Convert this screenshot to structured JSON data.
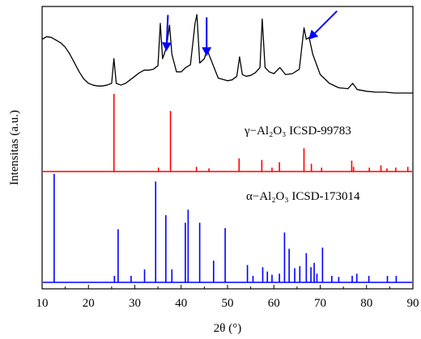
{
  "chart_data": {
    "type": "line",
    "xlabel": "2θ (°)",
    "ylabel": "Intensitas (a.u.)",
    "xlim": [
      10,
      90
    ],
    "x_ticks": [
      10,
      20,
      30,
      40,
      50,
      60,
      70,
      80,
      90
    ],
    "y_ticks_shown": false,
    "grid": false,
    "annotations": [
      {
        "text": "γ−Al₂O₃ ICSD-99783",
        "near_series": "γ−Al₂O₃ ICSD-99783"
      },
      {
        "text": "α−Al₂O₃ ICSD-173014",
        "near_series": "α−Al₂O₃ ICSD-173014"
      }
    ],
    "arrows": [
      {
        "points_to_2theta": 36.8
      },
      {
        "points_to_2theta": 45.5
      },
      {
        "points_to_2theta": 67.5
      }
    ],
    "series": [
      {
        "name": "",
        "style": "line",
        "color": "#000000",
        "baseline": 0,
        "peak_height_max": 1,
        "x": [
          10,
          11,
          12,
          13,
          14,
          15,
          16,
          17,
          18,
          19,
          20,
          21,
          22,
          23,
          24,
          25,
          25.5,
          26,
          27,
          28,
          29,
          30,
          31,
          32,
          33,
          34,
          35,
          35.5,
          36,
          36.8,
          37.5,
          38,
          39,
          40,
          41,
          42,
          43,
          43.4,
          44,
          45,
          45.6,
          46.5,
          48,
          50,
          51,
          52,
          52.6,
          53.2,
          54,
          55,
          56,
          57,
          57.5,
          58.1,
          59,
          60,
          61.3,
          62.5,
          64,
          65.5,
          66.5,
          67,
          67.6,
          68.4,
          70,
          72,
          74,
          76,
          77,
          78,
          80,
          82,
          84,
          86,
          88,
          90
        ],
        "y": [
          0.72,
          0.75,
          0.74,
          0.71,
          0.68,
          0.63,
          0.55,
          0.45,
          0.35,
          0.27,
          0.22,
          0.2,
          0.19,
          0.19,
          0.2,
          0.22,
          0.5,
          0.22,
          0.2,
          0.22,
          0.26,
          0.3,
          0.34,
          0.37,
          0.37,
          0.38,
          0.42,
          0.9,
          0.5,
          0.62,
          0.88,
          0.55,
          0.35,
          0.35,
          0.4,
          0.43,
          0.9,
          1.0,
          0.45,
          0.5,
          0.6,
          0.48,
          0.28,
          0.25,
          0.26,
          0.3,
          0.52,
          0.32,
          0.3,
          0.31,
          0.34,
          0.4,
          0.95,
          0.4,
          0.35,
          0.33,
          0.4,
          0.32,
          0.33,
          0.38,
          0.85,
          0.72,
          0.74,
          0.55,
          0.32,
          0.22,
          0.17,
          0.16,
          0.22,
          0.15,
          0.13,
          0.12,
          0.12,
          0.11,
          0.11,
          0.11
        ]
      },
      {
        "name": "γ−Al₂O₃ ICSD-99783",
        "style": "stick",
        "color": "#ff0000",
        "baseline": 0,
        "peak_height_max": 1,
        "x": [
          25.5,
          35.1,
          37.7,
          43.3,
          46,
          52.5,
          57.4,
          59.6,
          61.2,
          66.5,
          68.1,
          70.3,
          76.8,
          77.2,
          80.6,
          83.1,
          84.4,
          86.3,
          88.9
        ],
        "y": [
          1.0,
          0.05,
          0.78,
          0.06,
          0.04,
          0.17,
          0.15,
          0.05,
          0.12,
          0.3,
          0.1,
          0.05,
          0.14,
          0.06,
          0.05,
          0.08,
          0.04,
          0.05,
          0.06
        ]
      },
      {
        "name": "α−Al₂O₃ ICSD-173014",
        "style": "stick",
        "color": "#0000ff",
        "baseline": 0,
        "peak_height_max": 1,
        "x": [
          12.6,
          25.6,
          26.4,
          29.2,
          32.1,
          34.5,
          36.7,
          38,
          40.9,
          41.5,
          44,
          47,
          49.5,
          54.3,
          55.5,
          57.6,
          58.6,
          59.6,
          61.2,
          62.3,
          63.3,
          64.5,
          65.6,
          67,
          68,
          68.7,
          69.3,
          70.5,
          72.5,
          74,
          76.9,
          77.9,
          80.5,
          84.5,
          86.4
        ],
        "y": [
          1.0,
          0.06,
          0.49,
          0.06,
          0.12,
          0.93,
          0.62,
          0.12,
          0.55,
          0.67,
          0.55,
          0.2,
          0.5,
          0.16,
          0.06,
          0.14,
          0.1,
          0.07,
          0.08,
          0.46,
          0.31,
          0.13,
          0.15,
          0.27,
          0.14,
          0.18,
          0.08,
          0.32,
          0.06,
          0.05,
          0.06,
          0.08,
          0.06,
          0.06,
          0.06
        ]
      }
    ]
  }
}
